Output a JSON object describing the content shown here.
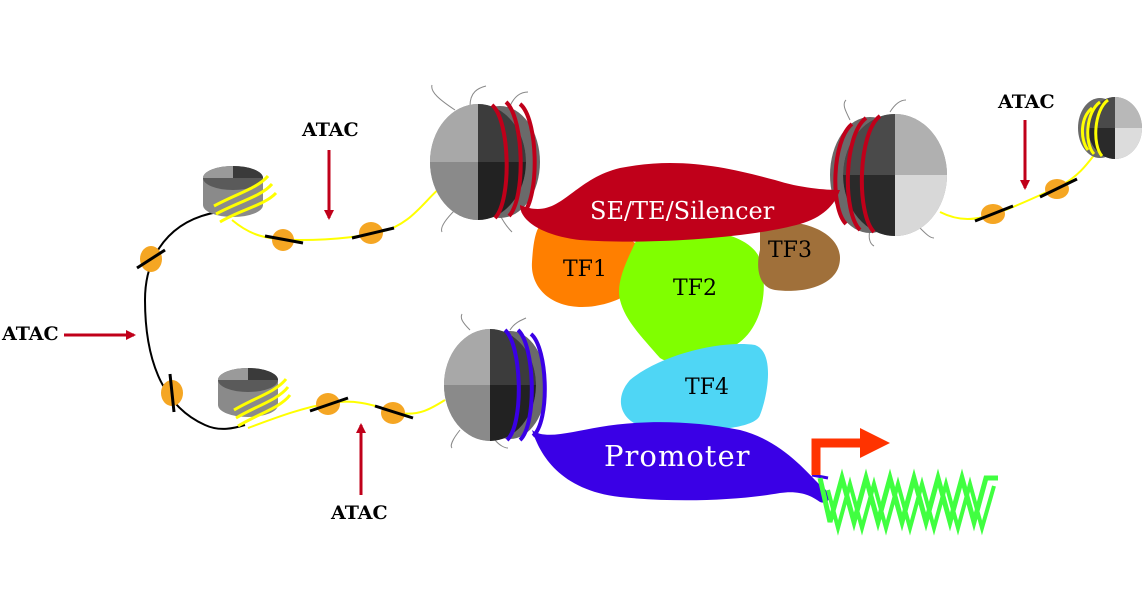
{
  "labels": {
    "atac_left": "ATAC",
    "atac_top_left": "ATAC",
    "atac_bottom": "ATAC",
    "atac_top_right": "ATAC",
    "enhancer": "SE/TE/Silencer",
    "promoter": "Promoter",
    "tf1": "TF1",
    "tf2": "TF2",
    "tf3": "TF3",
    "tf4": "TF4"
  },
  "colors": {
    "enhancer": "#c0001a",
    "promoter": "#3a00e6",
    "tf1": "#ff7f00",
    "tf2": "#80ff00",
    "tf3": "#a0703a",
    "tf4": "#4fd6f5",
    "open_dna": "#ffff00",
    "arrow": "#c0001a",
    "transcript": "#40ff40",
    "tss_arrow": "#ff3300",
    "cut_site": "#f5a623"
  }
}
